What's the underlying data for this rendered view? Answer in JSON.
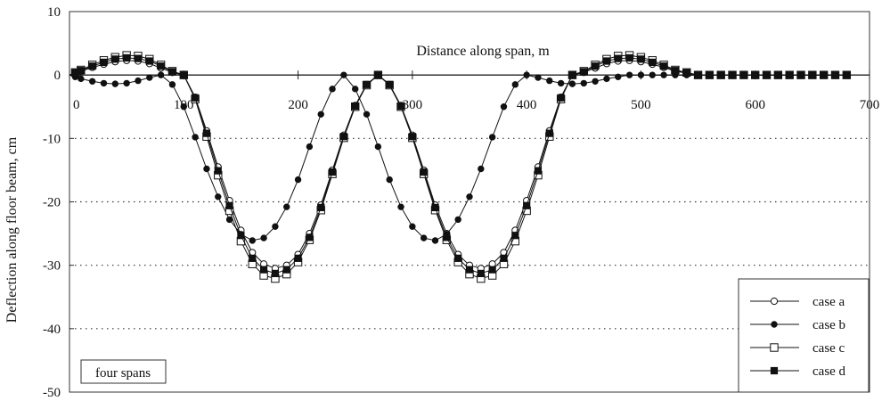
{
  "chart_data": {
    "type": "line",
    "xlabel": "Distance along span, m",
    "ylabel": "Deflection along floor beam, cm",
    "xlim": [
      0,
      700
    ],
    "ylim": [
      -50,
      10
    ],
    "x_ticks": [
      "0",
      "100",
      "200",
      "300",
      "400",
      "500",
      "600",
      "700"
    ],
    "y_ticks": [
      "10",
      "0",
      "-10",
      "-20",
      "-30",
      "-40",
      "-50"
    ],
    "grid": "horizontal dotted",
    "legend_position": "bottom-right",
    "annotation": "four spans",
    "x": [
      0,
      5,
      10,
      20,
      30,
      40,
      50,
      60,
      70,
      80,
      90,
      100,
      110,
      120,
      130,
      140,
      150,
      160,
      170,
      180,
      190,
      200,
      210,
      220,
      230,
      240,
      250,
      260,
      270,
      280,
      290,
      300,
      310,
      320,
      330,
      340,
      350,
      360,
      370,
      380,
      390,
      400,
      410,
      420,
      430,
      440,
      450,
      460,
      470,
      480,
      490,
      500,
      510,
      520,
      530,
      540,
      550,
      560,
      570,
      580,
      590,
      600,
      610,
      620,
      630,
      640,
      650,
      660,
      670,
      680
    ],
    "series": [
      {
        "name": "case a",
        "marker": "open-circle",
        "values": [
          0,
          0.3,
          0.6,
          1.2,
          1.7,
          2.1,
          2.3,
          2.2,
          1.8,
          1.1,
          0.4,
          0,
          -3.5,
          -8.8,
          -14.5,
          -19.8,
          -24.5,
          -28.0,
          -29.8,
          -30.5,
          -30.0,
          -28.3,
          -25.0,
          -20.5,
          -15.0,
          -9.5,
          -4.8,
          -1.5,
          0,
          -1.5,
          -4.8,
          -9.5,
          -15.0,
          -20.5,
          -25.0,
          -28.3,
          -30.0,
          -30.5,
          -29.8,
          -28.0,
          -24.5,
          -19.8,
          -14.5,
          -8.8,
          -3.5,
          0,
          0.4,
          1.1,
          1.8,
          2.2,
          2.3,
          2.1,
          1.7,
          1.2,
          0.6,
          0.3,
          0,
          0,
          0,
          0,
          0,
          0,
          0,
          0,
          0,
          0,
          0,
          0,
          0,
          0
        ]
      },
      {
        "name": "case b",
        "marker": "filled-circle",
        "values": [
          0,
          -0.3,
          -0.6,
          -1.0,
          -1.3,
          -1.4,
          -1.3,
          -0.9,
          -0.4,
          0,
          -1.5,
          -5.0,
          -9.8,
          -14.8,
          -19.2,
          -22.8,
          -25.1,
          -26.1,
          -25.7,
          -23.9,
          -20.8,
          -16.5,
          -11.3,
          -6.2,
          -2.2,
          0,
          -2.2,
          -6.2,
          -11.3,
          -16.5,
          -20.8,
          -23.9,
          -25.7,
          -26.1,
          -25.1,
          -22.8,
          -19.2,
          -14.8,
          -9.8,
          -5.0,
          -1.5,
          0,
          -0.4,
          -0.9,
          -1.3,
          -1.4,
          -1.3,
          -1.0,
          -0.6,
          -0.3,
          0,
          0,
          0,
          0,
          0,
          0,
          0,
          0,
          0,
          0,
          0,
          0,
          0,
          0,
          0,
          0,
          0,
          0,
          0,
          0
        ]
      },
      {
        "name": "case c",
        "marker": "open-square",
        "values": [
          0,
          0.4,
          0.8,
          1.6,
          2.3,
          2.8,
          3.1,
          3.0,
          2.5,
          1.6,
          0.6,
          0,
          -3.8,
          -9.7,
          -15.8,
          -21.4,
          -26.2,
          -29.8,
          -31.6,
          -32.1,
          -31.4,
          -29.5,
          -26.0,
          -21.3,
          -15.6,
          -9.9,
          -5.0,
          -1.6,
          0,
          -1.6,
          -5.0,
          -9.9,
          -15.6,
          -21.3,
          -26.0,
          -29.5,
          -31.4,
          -32.1,
          -31.6,
          -29.8,
          -26.2,
          -21.4,
          -15.8,
          -9.7,
          -3.8,
          0,
          0.6,
          1.6,
          2.5,
          3.0,
          3.1,
          2.8,
          2.3,
          1.6,
          0.8,
          0.4,
          0,
          0,
          0,
          0,
          0,
          0,
          0,
          0,
          0,
          0,
          0,
          0,
          0,
          0
        ]
      },
      {
        "name": "case d",
        "marker": "filled-square",
        "values": [
          0,
          0.35,
          0.7,
          1.4,
          2.0,
          2.5,
          2.7,
          2.6,
          2.2,
          1.4,
          0.5,
          0,
          -3.6,
          -9.2,
          -15.1,
          -20.6,
          -25.3,
          -28.9,
          -30.7,
          -31.3,
          -30.7,
          -28.9,
          -25.6,
          -20.9,
          -15.3,
          -9.7,
          -4.9,
          -1.5,
          0,
          -1.5,
          -4.9,
          -9.7,
          -15.3,
          -20.9,
          -25.6,
          -28.9,
          -30.7,
          -31.3,
          -30.7,
          -28.9,
          -25.3,
          -20.6,
          -15.1,
          -9.2,
          -3.6,
          0,
          0.5,
          1.4,
          2.2,
          2.6,
          2.7,
          2.5,
          2.0,
          1.4,
          0.7,
          0.35,
          0,
          0,
          0,
          0,
          0,
          0,
          0,
          0,
          0,
          0,
          0,
          0,
          0,
          0
        ]
      }
    ]
  }
}
